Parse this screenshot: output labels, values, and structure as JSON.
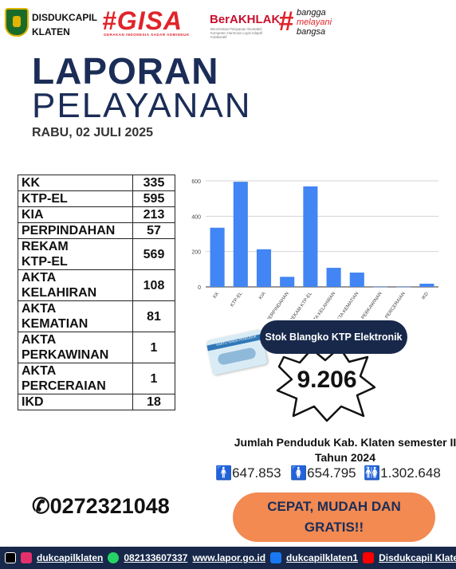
{
  "header": {
    "org_line1": "DISDUKCAPIL",
    "org_line2": "KLATEN",
    "gisa": "#GISA",
    "gisa_sub": "GERAKAN INDONESIA SADAR ADMINDUK",
    "berakhlak": "BerAKHLAK",
    "berakhlak_sub": "Berorientasi Pelayanan Akuntabel Kompeten Harmonis Loyal Adaptif Kolaboratif",
    "bangga_line1": "bangga",
    "bangga_line2": "melayani",
    "bangga_line3": "bangsa"
  },
  "title": {
    "line1": "LAPORAN",
    "line2": "PELAYANAN",
    "date": "RABU, 02 JULI 2025"
  },
  "table": [
    {
      "label": "KK",
      "value": "335"
    },
    {
      "label": "KTP-EL",
      "value": "595"
    },
    {
      "label": "KIA",
      "value": "213"
    },
    {
      "label": "PERPINDAHAN",
      "value": "57"
    },
    {
      "label": "REKAM\nKTP-EL",
      "value": "569"
    },
    {
      "label": "AKTA\nKELAHIRAN",
      "value": "108"
    },
    {
      "label": "AKTA\nKEMATIAN",
      "value": "81"
    },
    {
      "label": "AKTA\nPERKAWINAN",
      "value": "1"
    },
    {
      "label": "AKTA\nPERCERAIAN",
      "value": "1"
    },
    {
      "label": "IKD",
      "value": "18"
    }
  ],
  "chart_data": {
    "type": "bar",
    "categories": [
      "KK",
      "KTP-EL",
      "KIA",
      "PERPINDAHAN",
      "REKAM KTP-EL",
      "AKTA KELAHIRAN",
      "AKTA KEMATIAN",
      "AKTA PERKAWINAN",
      "AKTA PERCERAIAN",
      "IKD"
    ],
    "values": [
      335,
      595,
      213,
      57,
      569,
      108,
      81,
      1,
      1,
      18
    ],
    "yticks": [
      "0",
      "200",
      "400",
      "600"
    ],
    "ylim": [
      0,
      600
    ],
    "grid": true,
    "bar_color": "#4285f4"
  },
  "stok": {
    "label": "Stok Blangko KTP Elektronik",
    "value": "9.206"
  },
  "card_text": "KARTU TANDA PENDUDUK",
  "population": {
    "title_line1": "Jumlah Penduduk Kab. Klaten semester II",
    "title_line2": "Tahun 2024",
    "male": "647.853",
    "female": "654.795",
    "total": "1.302.648"
  },
  "phone": "0272321048",
  "cta": {
    "line1": "CEPAT, MUDAH DAN",
    "line2": "GRATIS!!"
  },
  "footer": {
    "tiktok_instagram": "dukcapilklaten",
    "whatsapp": "082133607337",
    "lapor": "www.lapor.go.id",
    "facebook": "dukcapilklaten1",
    "youtube": "Disdukcapil Klaten"
  }
}
